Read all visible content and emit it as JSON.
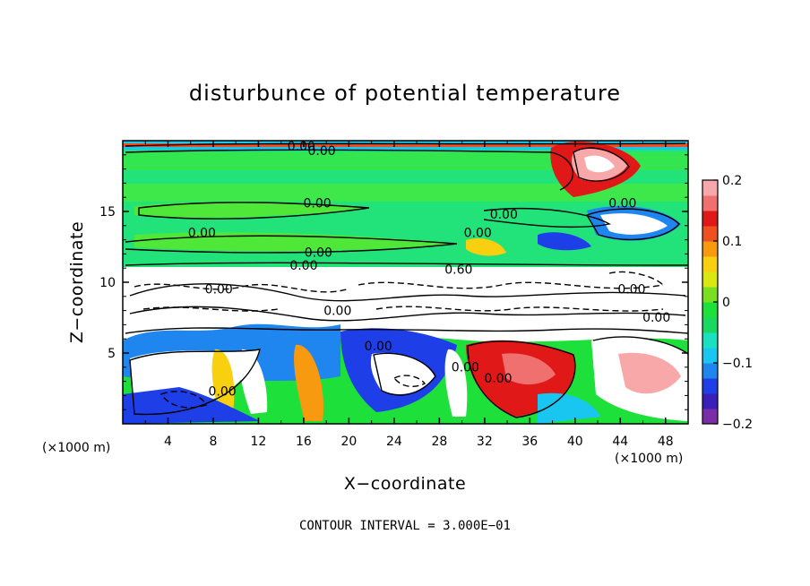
{
  "chart_data": {
    "type": "heatmap",
    "title": "disturbunce of potential temperature",
    "xlabel": "X−coordinate",
    "ylabel": "Z−coordinate",
    "x_unit_left": "(×1000 m)",
    "x_unit_right": "(×1000 m)",
    "xlim": [
      0,
      50
    ],
    "ylim": [
      0,
      20
    ],
    "x_ticks": [
      4,
      8,
      12,
      16,
      20,
      24,
      28,
      32,
      36,
      40,
      44,
      48
    ],
    "y_ticks": [
      5,
      10,
      15
    ],
    "colorbar": {
      "range": [
        -0.2,
        0.2
      ],
      "ticks": [
        {
          "value": 0.2,
          "label": "0.2"
        },
        {
          "value": 0.1,
          "label": "0.1"
        },
        {
          "value": 0,
          "label": "0"
        },
        {
          "value": -0.1,
          "label": "−0.1"
        },
        {
          "value": -0.2,
          "label": "−0.2"
        }
      ],
      "colors": [
        "#7b2ca8",
        "#3a1fb8",
        "#1e3fe8",
        "#1f86f0",
        "#19c6f0",
        "#19e0c0",
        "#19d860",
        "#1ee03a",
        "#78e020",
        "#d8e810",
        "#f8d010",
        "#f89a10",
        "#f05020",
        "#e01818",
        "#f07070",
        "#f8a8a8"
      ]
    },
    "contour_interval": "CONTOUR INTERVAL = 3.000E−01",
    "contour_labels": [
      {
        "x": 15.8,
        "z": 19.3,
        "text": "0.00"
      },
      {
        "x": 17.6,
        "z": 19.0,
        "text": "0.00"
      },
      {
        "x": 17.2,
        "z": 15.3,
        "text": "0.00"
      },
      {
        "x": 7.0,
        "z": 13.2,
        "text": "0.00"
      },
      {
        "x": 17.3,
        "z": 11.8,
        "text": "0.00"
      },
      {
        "x": 16.0,
        "z": 10.9,
        "text": "0.00"
      },
      {
        "x": 33.7,
        "z": 14.5,
        "text": "0.00"
      },
      {
        "x": 31.4,
        "z": 13.2,
        "text": "0.00"
      },
      {
        "x": 44.2,
        "z": 15.3,
        "text": "0.00"
      },
      {
        "x": 29.7,
        "z": 10.6,
        "text": "0.60"
      },
      {
        "x": 8.5,
        "z": 9.2,
        "text": "0.00"
      },
      {
        "x": 19.0,
        "z": 7.7,
        "text": "0.00"
      },
      {
        "x": 22.6,
        "z": 5.2,
        "text": "0.00"
      },
      {
        "x": 45.0,
        "z": 9.2,
        "text": "0.00"
      },
      {
        "x": 47.2,
        "z": 7.2,
        "text": "0.00"
      },
      {
        "x": 8.8,
        "z": 2.0,
        "text": "0.00"
      },
      {
        "x": 30.3,
        "z": 3.7,
        "text": "0.00"
      },
      {
        "x": 33.2,
        "z": 2.9,
        "text": "0.00"
      }
    ]
  }
}
